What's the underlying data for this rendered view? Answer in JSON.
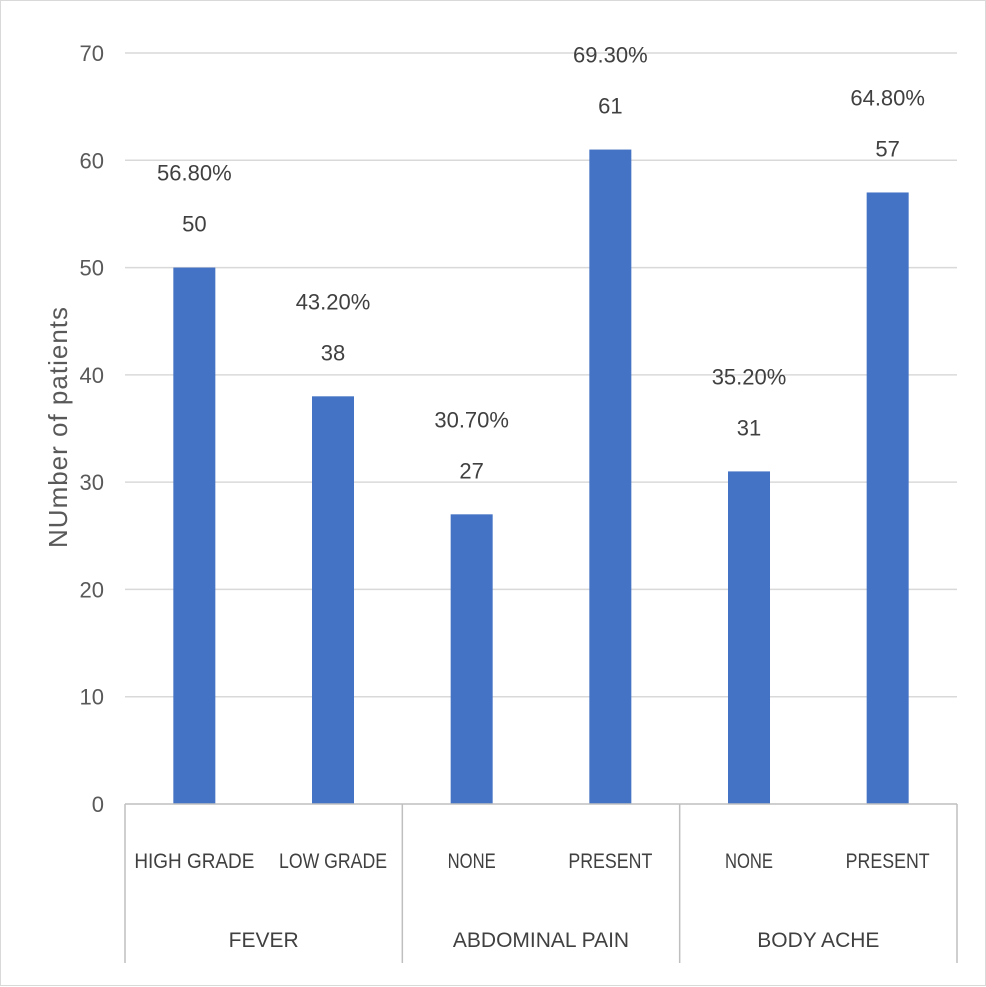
{
  "chart_data": {
    "type": "bar",
    "ylabel": "NUmber of patients",
    "ylim": [
      0,
      70
    ],
    "yticks": [
      "0",
      "10",
      "20",
      "30",
      "40",
      "50",
      "60",
      "70"
    ],
    "grid": true,
    "bar_color": "#4472C4",
    "groups": [
      {
        "label": "FEVER",
        "categories": [
          {
            "label": "HIGH GRADE",
            "value": 50,
            "value_label": "50",
            "percent": "56.80%"
          },
          {
            "label": "LOW GRADE",
            "value": 38,
            "value_label": "38",
            "percent": "43.20%"
          }
        ]
      },
      {
        "label": "ABDOMINAL PAIN",
        "categories": [
          {
            "label": "NONE",
            "value": 27,
            "value_label": "27",
            "percent": "30.70%"
          },
          {
            "label": "PRESENT",
            "value": 61,
            "value_label": "61",
            "percent": "69.30%"
          }
        ]
      },
      {
        "label": "BODY ACHE",
        "categories": [
          {
            "label": "NONE",
            "value": 31,
            "value_label": "31",
            "percent": "35.20%"
          },
          {
            "label": "PRESENT",
            "value": 57,
            "value_label": "57",
            "percent": "64.80%"
          }
        ]
      }
    ]
  }
}
